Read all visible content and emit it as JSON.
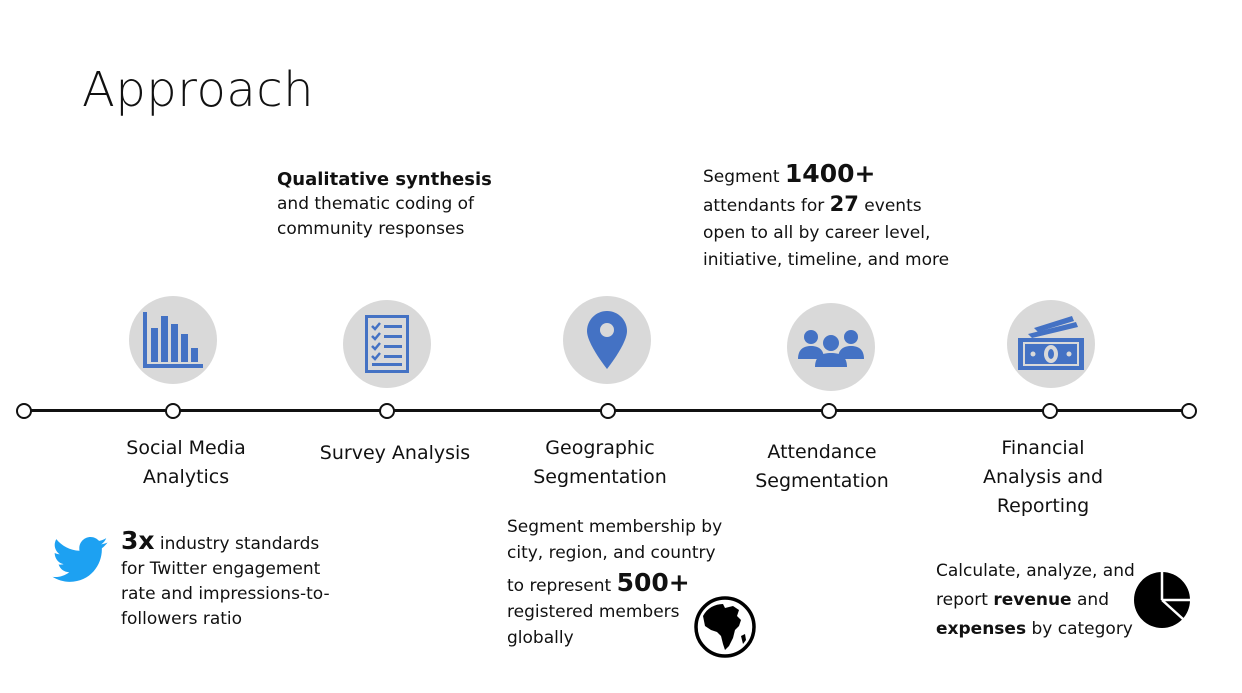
{
  "title": "Approach",
  "steps": [
    {
      "label_line1": "Social Media",
      "label_line2": "Analytics",
      "icon": "bar-chart-icon"
    },
    {
      "label_line1": "Survey Analysis",
      "icon": "checklist-icon"
    },
    {
      "label_line1": "Geographic",
      "label_line2": "Segmentation",
      "icon": "map-pin-icon"
    },
    {
      "label_line1": "Attendance",
      "label_line2": "Segmentation",
      "icon": "people-group-icon"
    },
    {
      "label_line1": "Financial",
      "label_line2": "Analysis and",
      "label_line3": "Reporting",
      "icon": "money-stack-icon"
    }
  ],
  "notes": {
    "social": {
      "stat": "3x",
      "text1": " industry standards",
      "text2": "for Twitter engagement",
      "text3": "rate and impressions-to-",
      "text4": "followers ratio",
      "icon": "twitter-bird-icon"
    },
    "survey": {
      "bold": "Qualitative synthesis",
      "text1": "and thematic coding of",
      "text2": "community responses"
    },
    "geographic": {
      "text1": "Segment membership by",
      "text2": "city, region, and country",
      "text3": "to represent ",
      "stat": "500+",
      "text4": "registered members",
      "text5": "globally",
      "icon": "globe-africa-icon"
    },
    "attendance": {
      "text1": "Segment ",
      "stat1": "1400+",
      "text2": "attendants for ",
      "stat2": "27",
      "text3": " events",
      "text4": "open to all by career level,",
      "text5": "initiative, timeline, and more"
    },
    "financial": {
      "text1": "Calculate, analyze, and",
      "text2a": "report ",
      "bold1": "revenue",
      "text2b": " and",
      "bold2": "expenses",
      "text3": " by category",
      "icon": "pie-chart-icon"
    }
  },
  "colors": {
    "icon_blue": "#4472c4",
    "circle_gray": "#d9d9d9",
    "twitter_blue": "#1da1f2"
  }
}
